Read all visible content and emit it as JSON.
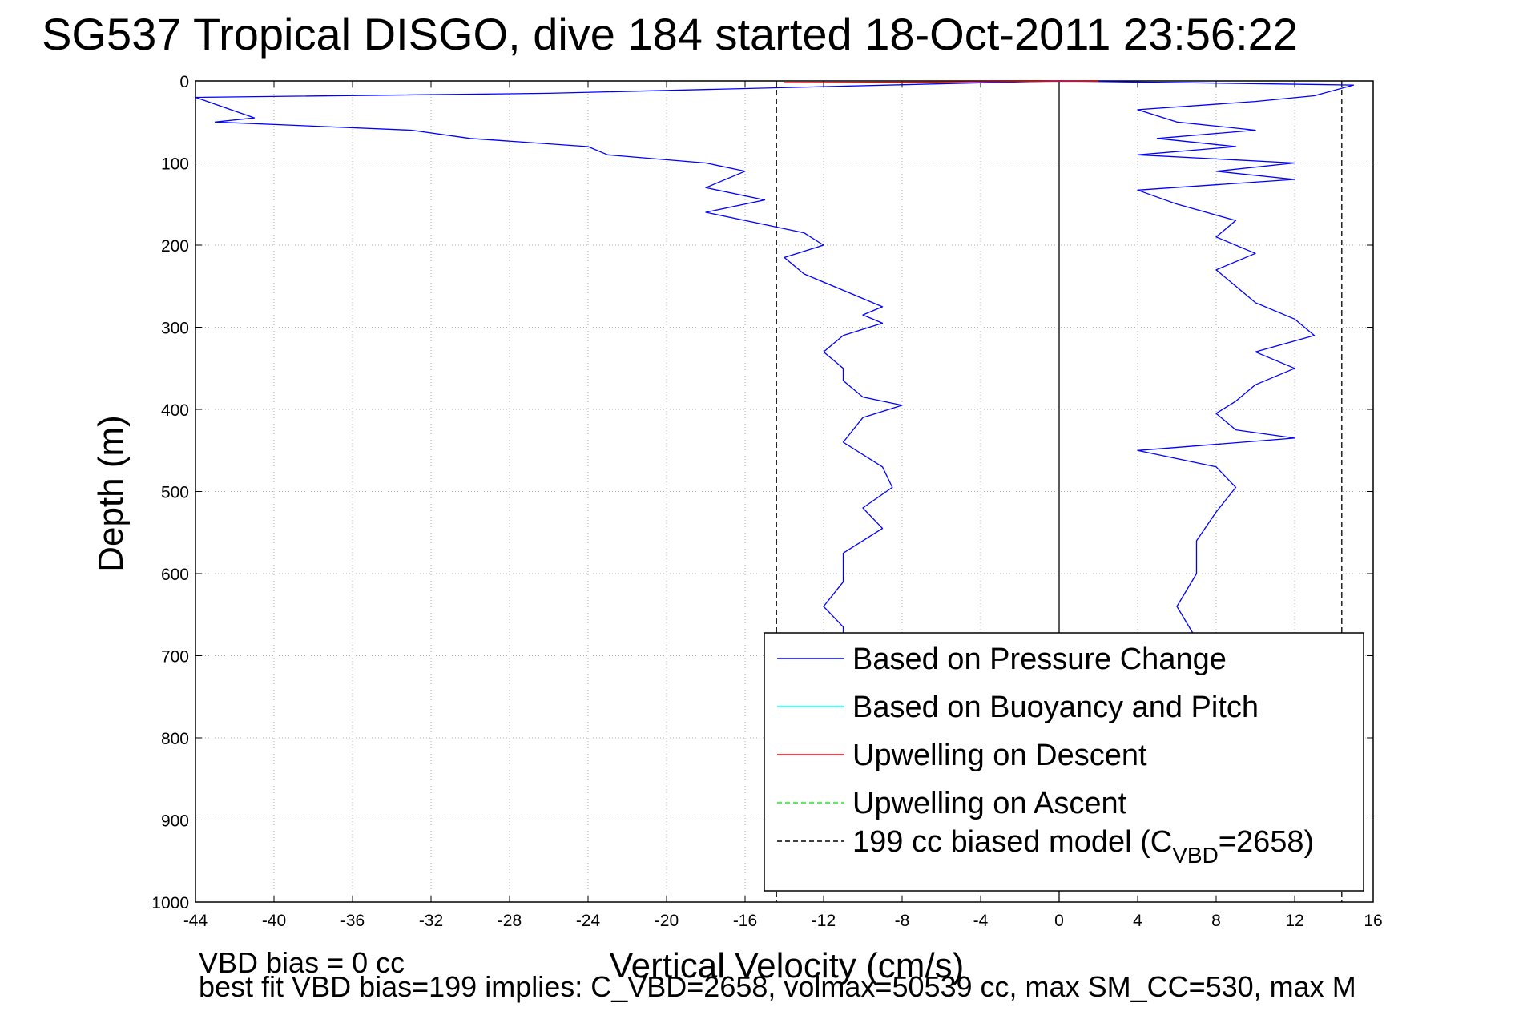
{
  "chart_data": {
    "type": "line",
    "title": "SG537 Tropical DISGO, dive 184 started 18-Oct-2011 23:56:22",
    "xlabel": "Vertical Velocity (cm/s)",
    "ylabel": "Depth (m)",
    "xlim": [
      -44,
      16
    ],
    "ylim": [
      0,
      1000
    ],
    "y_reversed": true,
    "grid": true,
    "x_ticks": [
      "-44",
      "-40",
      "-36",
      "-32",
      "-28",
      "-24",
      "-20",
      "-16",
      "-12",
      "-8",
      "-4",
      "0",
      "4",
      "8",
      "12",
      "16"
    ],
    "y_ticks": [
      "0",
      "100",
      "200",
      "300",
      "400",
      "500",
      "600",
      "700",
      "800",
      "900",
      "1000"
    ],
    "legend_position": "bottom-right",
    "legend": [
      {
        "label": "Based on Pressure Change",
        "color": "#0000ff",
        "style": "solid"
      },
      {
        "label": "Based on Buoyancy and Pitch",
        "color": "#00ffff",
        "style": "solid"
      },
      {
        "label": "Upwelling on Descent",
        "color": "#ff0000",
        "style": "solid"
      },
      {
        "label": "Upwelling on Ascent",
        "color": "#00ff00",
        "style": "dashed"
      },
      {
        "label_main": "199 cc biased model (C",
        "label_sub": "VBD",
        "label_end": "=2658)",
        "color": "#000000",
        "style": "dashed"
      }
    ],
    "series": [
      {
        "name": "Based on Pressure Change",
        "segment": "descent",
        "color": "#0000ff",
        "points": [
          [
            0,
            0
          ],
          [
            -26,
            15
          ],
          [
            -44,
            20
          ],
          [
            -41,
            45
          ],
          [
            -43,
            50
          ],
          [
            -33,
            60
          ],
          [
            -30,
            70
          ],
          [
            -24,
            80
          ],
          [
            -23,
            90
          ],
          [
            -18,
            100
          ],
          [
            -16,
            110
          ],
          [
            -18,
            130
          ],
          [
            -15,
            145
          ],
          [
            -18,
            160
          ],
          [
            -15,
            175
          ],
          [
            -13,
            185
          ],
          [
            -12,
            200
          ],
          [
            -14,
            215
          ],
          [
            -13,
            235
          ],
          [
            -11,
            255
          ],
          [
            -9,
            275
          ],
          [
            -10,
            285
          ],
          [
            -9,
            295
          ],
          [
            -11,
            310
          ],
          [
            -12,
            330
          ],
          [
            -11,
            350
          ],
          [
            -11,
            365
          ],
          [
            -10,
            385
          ],
          [
            -8,
            395
          ],
          [
            -10,
            410
          ],
          [
            -11,
            440
          ],
          [
            -9,
            470
          ],
          [
            -8.5,
            495
          ],
          [
            -10,
            520
          ],
          [
            -9,
            545
          ],
          [
            -11,
            575
          ],
          [
            -11,
            610
          ],
          [
            -12,
            640
          ],
          [
            -11,
            665
          ],
          [
            -11,
            680
          ]
        ]
      },
      {
        "name": "Based on Pressure Change",
        "segment": "ascent",
        "color": "#0000ff",
        "points": [
          [
            0,
            0
          ],
          [
            15,
            5
          ],
          [
            13,
            18
          ],
          [
            10,
            25
          ],
          [
            4,
            35
          ],
          [
            6,
            50
          ],
          [
            10,
            60
          ],
          [
            5,
            70
          ],
          [
            9,
            80
          ],
          [
            4,
            90
          ],
          [
            12,
            100
          ],
          [
            8,
            110
          ],
          [
            12,
            120
          ],
          [
            4,
            133
          ],
          [
            6,
            150
          ],
          [
            9,
            170
          ],
          [
            8,
            190
          ],
          [
            10,
            210
          ],
          [
            8,
            230
          ],
          [
            9,
            250
          ],
          [
            10,
            270
          ],
          [
            12,
            290
          ],
          [
            13,
            310
          ],
          [
            10,
            330
          ],
          [
            12,
            350
          ],
          [
            10,
            370
          ],
          [
            9,
            390
          ],
          [
            8,
            405
          ],
          [
            9,
            425
          ],
          [
            12,
            435
          ],
          [
            4,
            450
          ],
          [
            8,
            470
          ],
          [
            9,
            495
          ],
          [
            8,
            525
          ],
          [
            7,
            560
          ],
          [
            7,
            600
          ],
          [
            6,
            640
          ],
          [
            7,
            680
          ]
        ]
      },
      {
        "name": "Upwelling on Descent",
        "color": "#ff0000",
        "points": [
          [
            -14,
            2
          ],
          [
            -8,
            1.5
          ],
          [
            -4,
            1
          ],
          [
            0,
            0.5
          ],
          [
            2,
            0.5
          ]
        ]
      }
    ],
    "reference_lines": [
      {
        "name": "199 cc biased model descent",
        "x": -14.4,
        "color": "#000000",
        "style": "dashed"
      },
      {
        "name": "199 cc biased model ascent",
        "x": 14.4,
        "color": "#000000",
        "style": "dashed"
      },
      {
        "name": "zero",
        "x": 0,
        "color": "#000000",
        "style": "solid"
      }
    ]
  },
  "footnotes": {
    "vbd_bias": "VBD bias = 0 cc",
    "best_fit": "best fit VBD bias=199 implies: C_VBD=2658, volmax=50539 cc, max SM_CC=530, max M"
  }
}
